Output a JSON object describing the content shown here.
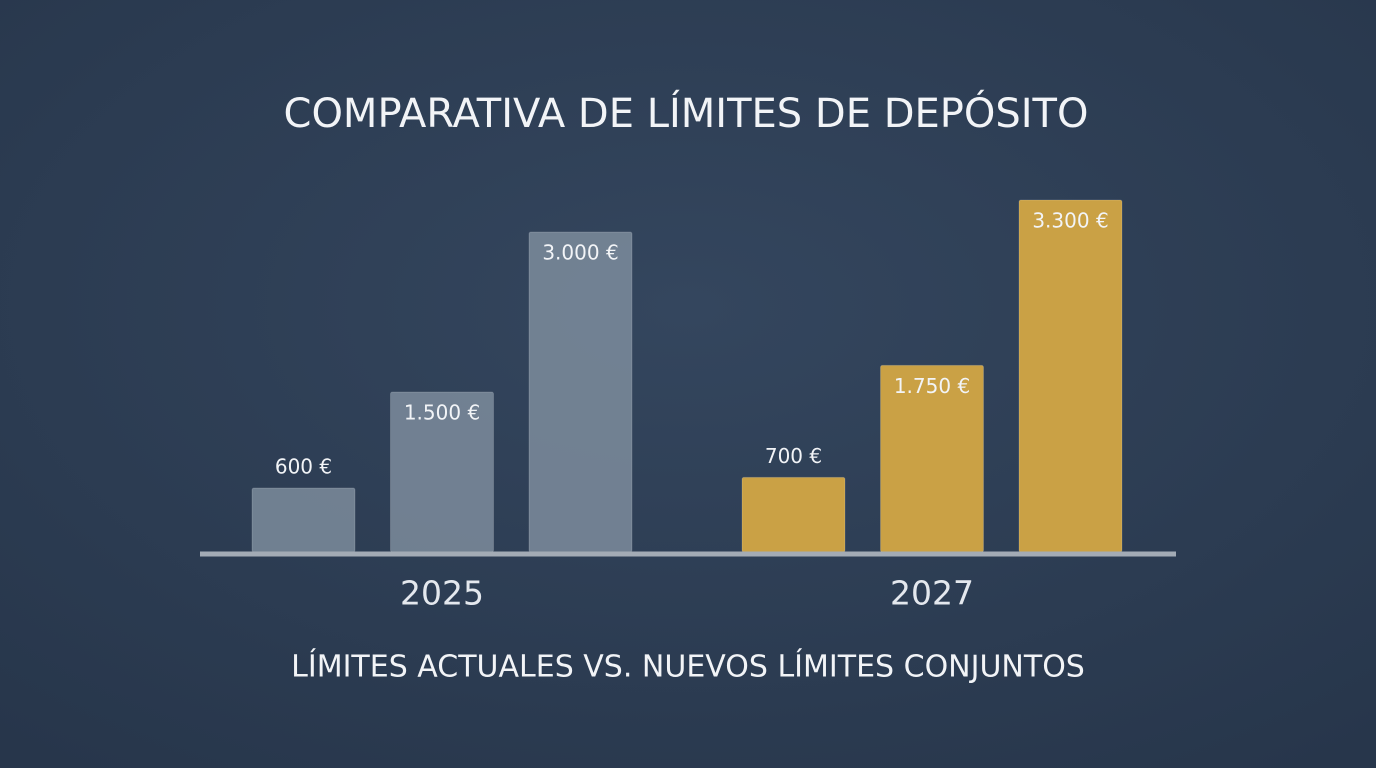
{
  "chart_data": {
    "type": "grouped-bar",
    "title": "COMPARATIVA DE LÍMITES DE DEPÓSITO",
    "subtitle": "LÍMITES ACTUALES VS. NUEVOS LÍMITES CONJUNTOS",
    "categories": [
      "2025",
      "2027"
    ],
    "colors": [
      "#7d8c9c",
      "#d3a744"
    ],
    "series": [
      {
        "values": [
          600,
          700
        ],
        "value_labels": [
          "600 €",
          "700 €"
        ]
      },
      {
        "values": [
          1500,
          1750
        ],
        "value_labels": [
          "1.500 €",
          "1.750 €"
        ]
      },
      {
        "values": [
          3000,
          3300
        ],
        "value_labels": [
          "3.000 €",
          "3.300 €"
        ]
      }
    ],
    "ylim": [
      0,
      3300
    ]
  }
}
